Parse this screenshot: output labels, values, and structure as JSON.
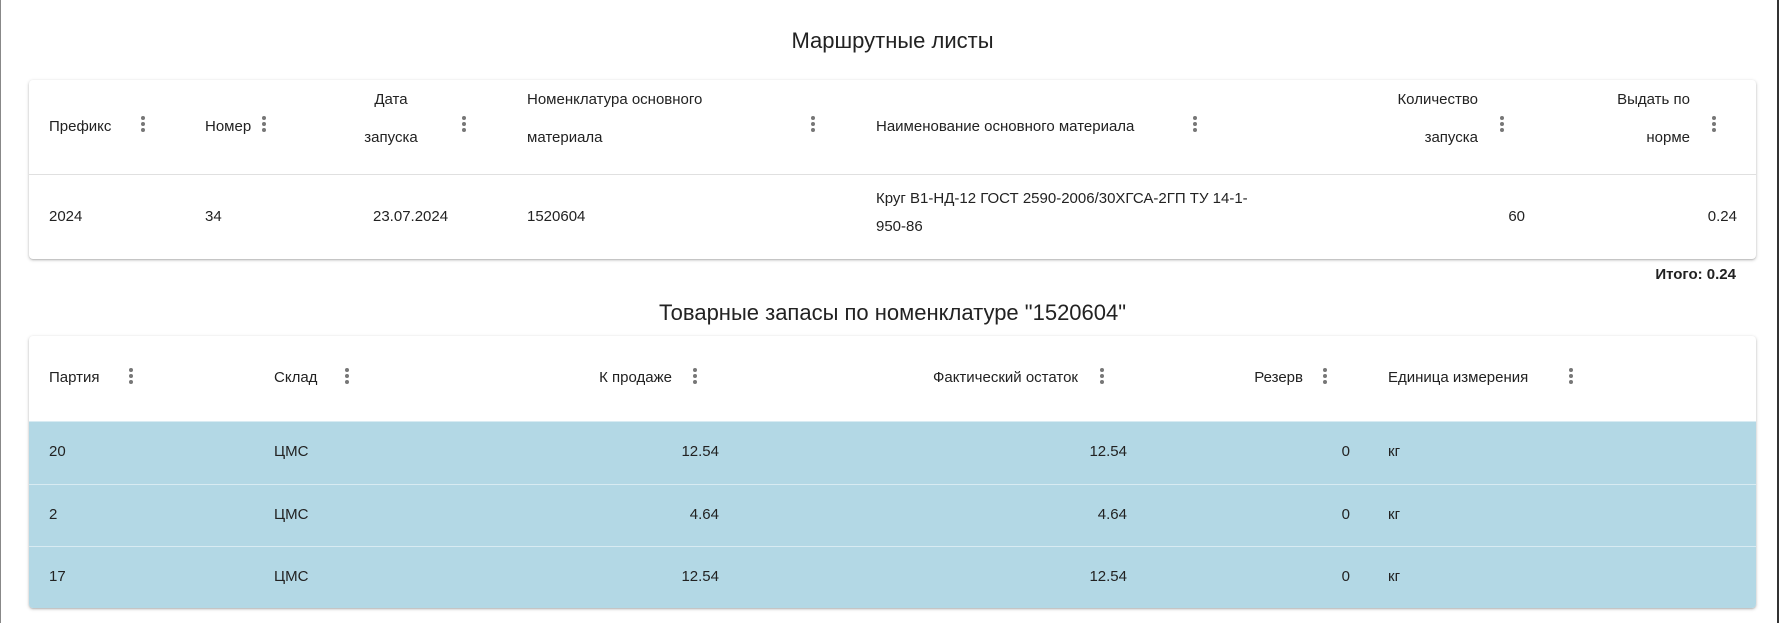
{
  "route_sheets": {
    "title": "Маршрутные листы",
    "columns": [
      "Префикс",
      "Номер",
      "Дата запуска",
      "Номенклатура основного материала",
      "Наименование основного материала",
      "Количество запуска",
      "Выдать по норме"
    ],
    "header_lines": {
      "date": [
        "Дата",
        "запуска"
      ],
      "nom": [
        "Номенклатура основного",
        "материала"
      ],
      "qty": [
        "Количество",
        "запуска"
      ],
      "norm": [
        "Выдать по",
        "норме"
      ]
    },
    "rows": [
      {
        "prefix": "2024",
        "number": "34",
        "date": "23.07.2024",
        "nomenclature": "1520604",
        "name_line1": "Круг В1-НД-12 ГОСТ 2590-2006/30ХГСА-2ГП ТУ 14-1-",
        "name_line2": "950-86",
        "quantity": "60",
        "norm": "0.24"
      }
    ],
    "total": "Итого: 0.24"
  },
  "stock": {
    "title": "Товарные запасы по номенклатуре \"1520604\"",
    "columns": [
      "Партия",
      "Склад",
      "К продаже",
      "Фактический остаток",
      "Резерв",
      "Единица измерения"
    ],
    "rows": [
      {
        "batch": "20",
        "warehouse": "ЦМС",
        "for_sale": "12.54",
        "actual": "12.54",
        "reserve": "0",
        "unit": "кг"
      },
      {
        "batch": "2",
        "warehouse": "ЦМС",
        "for_sale": "4.64",
        "actual": "4.64",
        "reserve": "0",
        "unit": "кг"
      },
      {
        "batch": "17",
        "warehouse": "ЦМС",
        "for_sale": "12.54",
        "actual": "12.54",
        "reserve": "0",
        "unit": "кг"
      }
    ],
    "row_color": "#b3d8e5"
  }
}
